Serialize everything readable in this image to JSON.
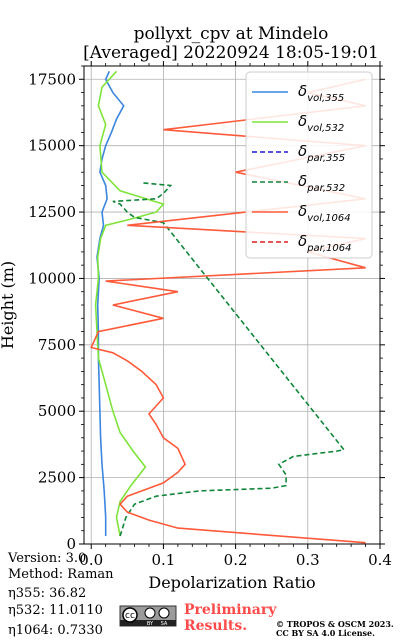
{
  "chart_data": {
    "type": "line",
    "title": "pollyxt_cpv at Mindelo",
    "subtitle": "[Averaged] 20220924 18:05-19:01",
    "xlabel": "Depolarization Ratio",
    "ylabel": "Height (m)",
    "xlim": [
      -0.01,
      0.4
    ],
    "ylim": [
      0,
      18000
    ],
    "xticks": [
      "0.0",
      "0.1",
      "0.2",
      "0.3",
      "0.4"
    ],
    "yticks": [
      "0",
      "2500",
      "5000",
      "7500",
      "10000",
      "12500",
      "15000",
      "17500"
    ],
    "grid": true,
    "legend_position": "top-right",
    "series": [
      {
        "name": "δvol,355",
        "label_main": "δ",
        "label_sub": "vol,355",
        "color": "#3a86e0",
        "dash": "solid",
        "x": [
          0.02,
          0.02,
          0.018,
          0.015,
          0.013,
          0.012,
          0.011,
          0.01,
          0.01,
          0.009,
          0.011,
          0.008,
          0.012,
          0.017,
          0.015,
          0.022,
          0.02,
          0.012,
          0.015,
          0.02,
          0.028,
          0.035,
          0.045,
          0.03,
          0.02,
          0.025
        ],
        "y": [
          300,
          1000,
          2000,
          3000,
          4000,
          5000,
          6000,
          7000,
          8000,
          9000,
          10000,
          10800,
          11500,
          12000,
          12500,
          13000,
          13500,
          14000,
          14500,
          15000,
          15500,
          16000,
          16500,
          17000,
          17500,
          17800
        ]
      },
      {
        "name": "δvol,532",
        "label_main": "δ",
        "label_sub": "vol,532",
        "color": "#7fe43a",
        "dash": "solid",
        "x": [
          0.04,
          0.035,
          0.04,
          0.055,
          0.075,
          0.058,
          0.04,
          0.03,
          0.02,
          0.01,
          0.008,
          0.006,
          0.01,
          0.009,
          0.013,
          0.02,
          0.05,
          0.09,
          0.1,
          0.04,
          0.015,
          0.012,
          0.02,
          0.01,
          0.015,
          0.035
        ],
        "y": [
          300,
          1000,
          1600,
          2200,
          2900,
          3500,
          4200,
          5000,
          6000,
          7000,
          8000,
          9000,
          10000,
          10800,
          11500,
          12000,
          12200,
          12500,
          12800,
          13300,
          14000,
          15000,
          15800,
          16500,
          17200,
          17800
        ]
      },
      {
        "name": "δpar,355",
        "label_main": "δ",
        "label_sub": "par,355",
        "color": "#1a1acc",
        "dash": "dashed",
        "x": [],
        "y": []
      },
      {
        "name": "δpar,532",
        "label_main": "δ",
        "label_sub": "par,532",
        "color": "#10863a",
        "dash": "dashed",
        "x": [
          0.04,
          0.048,
          0.06,
          0.09,
          0.15,
          0.25,
          0.27,
          0.27,
          0.26,
          0.28,
          0.34,
          0.35,
          0.1,
          0.06,
          0.05,
          0.04,
          0.03,
          0.09,
          0.1,
          0.11,
          0.07
        ],
        "y": [
          300,
          1000,
          1500,
          1800,
          2000,
          2100,
          2200,
          2600,
          3000,
          3300,
          3500,
          3550,
          12100,
          12300,
          12500,
          12800,
          12900,
          13000,
          13200,
          13500,
          13600
        ]
      },
      {
        "name": "δvol,1064",
        "label_main": "δ",
        "label_sub": "vol,1064",
        "color": "#ff5a3a",
        "dash": "solid",
        "x": [
          0.38,
          0.12,
          0.08,
          0.05,
          0.04,
          0.05,
          0.07,
          0.1,
          0.12,
          0.13,
          0.12,
          0.1,
          0.09,
          0.08,
          0.1,
          0.09,
          0.07,
          0.05,
          0.03,
          0.0,
          0.01,
          0.1,
          0.03,
          0.12,
          0.02,
          0.38,
          0.3,
          0.38,
          0.05,
          0.38,
          0.2,
          0.38,
          0.1,
          0.38,
          0.3,
          0.38
        ],
        "y": [
          50,
          600,
          900,
          1200,
          1500,
          1800,
          2000,
          2300,
          2700,
          3000,
          3600,
          4000,
          4500,
          4900,
          5500,
          6000,
          6500,
          6900,
          7200,
          7400,
          8000,
          8500,
          9000,
          9500,
          9900,
          10400,
          11000,
          11500,
          12000,
          13000,
          14000,
          15000,
          15600,
          16500,
          17000,
          17500
        ]
      },
      {
        "name": "δpar,1064",
        "label_main": "δ",
        "label_sub": "par,1064",
        "color": "#dd1f1f",
        "dash": "dashed",
        "x": [],
        "y": []
      }
    ]
  },
  "info": {
    "version": "Version: 3.0",
    "method": "Method: Raman",
    "eta355": "η355:  36.82",
    "eta532": "η532: 11.0110",
    "eta1064": "η1064: 0.7330"
  },
  "footer": {
    "preliminary_line1": "Preliminary",
    "preliminary_line2": "Results.",
    "copyright_line1": "© TROPOS & OSCM 2023.",
    "copyright_line2": "CC BY SA 4.0 License.",
    "cc_text": "cc",
    "by_text": "BY",
    "sa_text": "SA"
  }
}
